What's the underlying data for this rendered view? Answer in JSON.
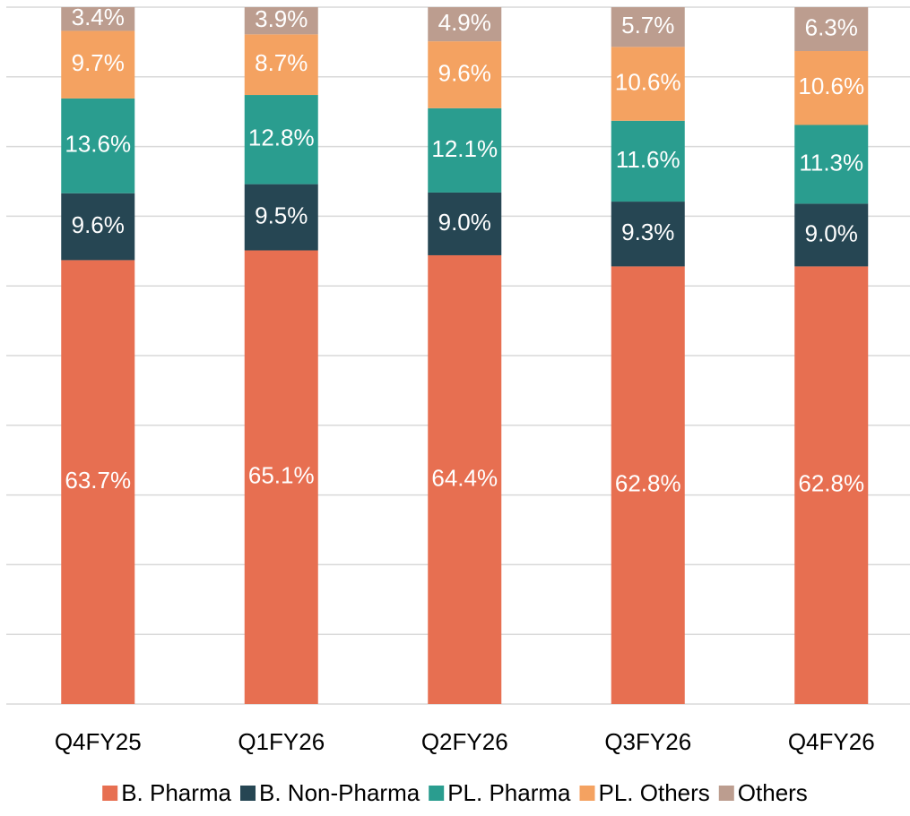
{
  "chart_data": {
    "type": "stacked_bar",
    "categories": [
      "Q4FY25",
      "Q1FY26",
      "Q2FY26",
      "Q3FY26",
      "Q4FY26"
    ],
    "series": [
      {
        "name": "B. Pharma",
        "color": "#e76f51",
        "values": [
          63.7,
          65.1,
          64.4,
          62.8,
          62.8
        ],
        "value_labels": [
          "63.7%",
          "65.1%",
          "64.4%",
          "62.8%",
          "62.8%"
        ]
      },
      {
        "name": "B. Non-Pharma",
        "color": "#264653",
        "values": [
          9.6,
          9.5,
          9.0,
          9.3,
          9.0
        ],
        "value_labels": [
          "9.6%",
          "9.5%",
          "9.0%",
          "9.3%",
          "9.0%"
        ]
      },
      {
        "name": "PL. Pharma",
        "color": "#2a9d8f",
        "values": [
          13.6,
          12.8,
          12.1,
          11.6,
          11.3
        ],
        "value_labels": [
          "13.6%",
          "12.8%",
          "12.1%",
          "11.6%",
          "11.3%"
        ]
      },
      {
        "name": "PL. Others",
        "color": "#f4a261",
        "values": [
          9.7,
          8.7,
          9.6,
          10.6,
          10.6
        ],
        "value_labels": [
          "9.7%",
          "8.7%",
          "9.6%",
          "10.6%",
          "10.6%"
        ]
      },
      {
        "name": "Others",
        "color": "#bc9d8f",
        "values": [
          3.4,
          3.9,
          4.9,
          5.7,
          6.3
        ],
        "value_labels": [
          "3.4%",
          "3.9%",
          "4.9%",
          "5.7%",
          "6.3%"
        ]
      }
    ],
    "ylim": [
      0,
      100
    ],
    "yticks": [
      0,
      10,
      20,
      30,
      40,
      50,
      60,
      70,
      80,
      90,
      100
    ],
    "grid": true,
    "legend": "bottom"
  }
}
